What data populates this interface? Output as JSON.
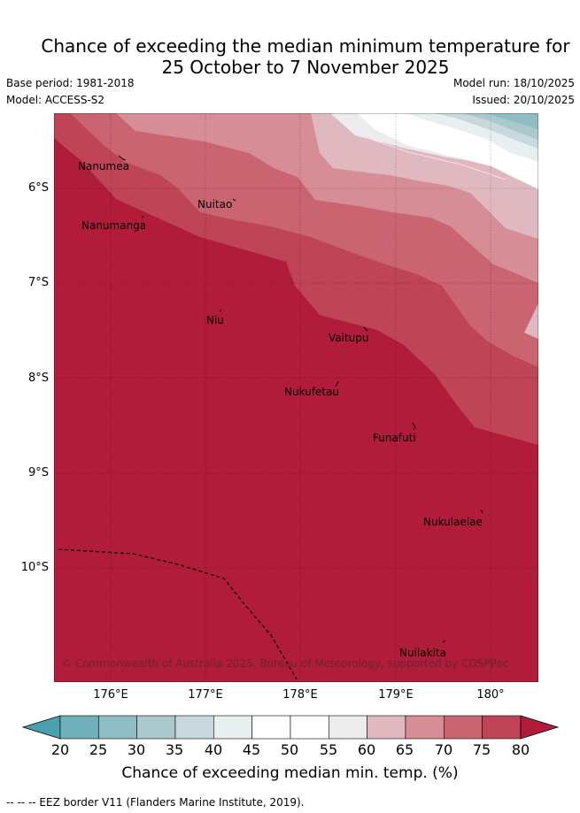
{
  "title_line1": "Chance of exceeding the median minimum temperature for",
  "title_line2": "25 October to 7 November 2025",
  "base_period": "Base period: 1981-2018",
  "model": "Model: ACCESS-S2",
  "model_run": "Model run: 18/10/2025",
  "issued": "Issued: 20/10/2025",
  "lat_labels": [
    "6°S",
    "7°S",
    "8°S",
    "9°S",
    "10°S"
  ],
  "lon_labels": [
    "176°E",
    "177°E",
    "178°E",
    "179°E",
    "180°"
  ],
  "places": [
    "Nanumea",
    "Nuitao",
    "Nanumanga",
    "Niu",
    "Vaitupu",
    "Nukufetau",
    "Funafuti",
    "Nukulaelae",
    "Nuilakita"
  ],
  "copyright": "© Commonwealth of Australia 2025, Bureau of Meteorology, supported by COSPPac",
  "colorbar": {
    "ticks": [
      "20",
      "25",
      "30",
      "35",
      "40",
      "45",
      "50",
      "55",
      "60",
      "65",
      "70",
      "75",
      "80"
    ],
    "colors": [
      "#4aa1ad",
      "#6fb0bb",
      "#90bcc5",
      "#abc9cd",
      "#c8d8dc",
      "#e8eff1",
      "#ffffff",
      "#ffffff",
      "#ececec",
      "#e0b9c0",
      "#d68d96",
      "#ca6471",
      "#be4456",
      "#b01c3a"
    ],
    "label": "Chance of exceeding median min. temp. (%)"
  },
  "eez_note": "--  --  -- EEZ border V11 (Flanders Marine Institute, 2019)."
}
